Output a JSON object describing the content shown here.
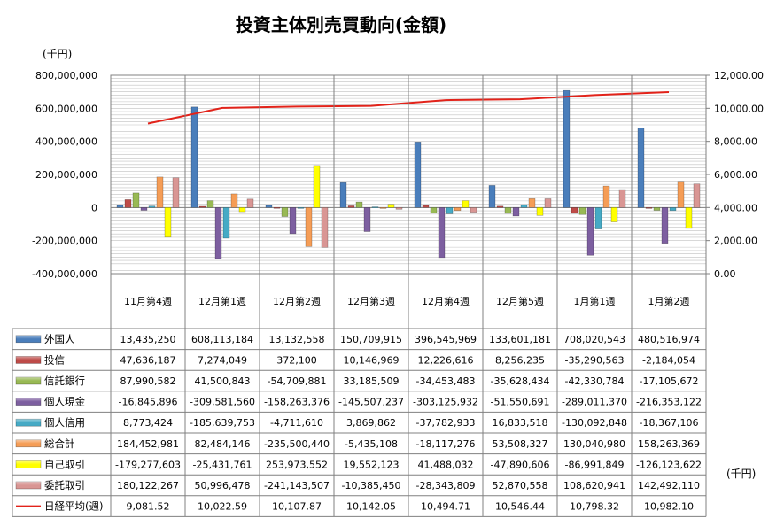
{
  "unit_left": "(千円)",
  "unit_right": "(千円)",
  "chart_data": {
    "type": "bar",
    "title": "投資主体別売買動向(金額)",
    "categories": [
      "11月第4週",
      "12月第1週",
      "12月第2週",
      "12月第3週",
      "12月第4週",
      "12月第5週",
      "1月第1週",
      "1月第2週"
    ],
    "y_left_ticks": [
      "800,000,000",
      "600,000,000",
      "400,000,000",
      "200,000,000",
      "0",
      "-200,000,000",
      "-400,000,000"
    ],
    "y_left_range": [
      -400000000,
      800000000
    ],
    "y_right_ticks": [
      "12,000.00",
      "10,000.00",
      "8,000.00",
      "6,000.00",
      "4,000.00",
      "2,000.00",
      "0.00"
    ],
    "y_right_range": [
      0,
      12000
    ],
    "grid": true,
    "legend_placement": "left-of-table",
    "series": [
      {
        "name": "外国人",
        "type": "bar",
        "color": "#4a7ebb",
        "values": [
          13435250,
          608113184,
          13132558,
          150709915,
          396545969,
          133601181,
          708020543,
          480516974
        ],
        "labels": [
          "13,435,250",
          "608,113,184",
          "13,132,558",
          "150,709,915",
          "396,545,969",
          "133,601,181",
          "708,020,543",
          "480,516,974"
        ]
      },
      {
        "name": "投信",
        "type": "bar",
        "color": "#be4b48",
        "values": [
          47636187,
          7274049,
          372100,
          10146969,
          12226616,
          8256235,
          -35290563,
          -2184054
        ],
        "labels": [
          "47,636,187",
          "7,274,049",
          "372,100",
          "10,146,969",
          "12,226,616",
          "8,256,235",
          "-35,290,563",
          "-2,184,054"
        ]
      },
      {
        "name": "信託銀行",
        "type": "bar",
        "color": "#98b954",
        "values": [
          87990582,
          41500843,
          -54709881,
          33185509,
          -34453483,
          -35628434,
          -42330784,
          -17105672
        ],
        "labels": [
          "87,990,582",
          "41,500,843",
          "-54,709,881",
          "33,185,509",
          "-34,453,483",
          "-35,628,434",
          "-42,330,784",
          "-17,105,672"
        ]
      },
      {
        "name": "個人現金",
        "type": "bar",
        "color": "#7d5fa0",
        "values": [
          -16845896,
          -309581560,
          -158263376,
          -145507237,
          -303125932,
          -51550691,
          -289011370,
          -216353122
        ],
        "labels": [
          "-16,845,896",
          "-309,581,560",
          "-158,263,376",
          "-145,507,237",
          "-303,125,932",
          "-51,550,691",
          "-289,011,370",
          "-216,353,122"
        ]
      },
      {
        "name": "個人信用",
        "type": "bar",
        "color": "#46aac5",
        "values": [
          8773424,
          -185639753,
          -4711610,
          3869862,
          -37782933,
          16833518,
          -130092848,
          -18367106
        ],
        "labels": [
          "8,773,424",
          "-185,639,753",
          "-4,711,610",
          "3,869,862",
          "-37,782,933",
          "16,833,518",
          "-130,092,848",
          "-18,367,106"
        ]
      },
      {
        "name": "総合計",
        "type": "bar",
        "color": "#f59d56",
        "values": [
          184452981,
          82484146,
          -235500440,
          -5435108,
          -18117276,
          53508327,
          130040980,
          158263369
        ],
        "labels": [
          "184,452,981",
          "82,484,146",
          "-235,500,440",
          "-5,435,108",
          "-18,117,276",
          "53,508,327",
          "130,040,980",
          "158,263,369"
        ]
      },
      {
        "name": "自己取引",
        "type": "bar",
        "color": "#ffff00",
        "values": [
          -179277603,
          -25431761,
          253973552,
          19552123,
          41488032,
          -47890606,
          -86991849,
          -126123622
        ],
        "labels": [
          "-179,277,603",
          "-25,431,761",
          "253,973,552",
          "19,552,123",
          "41,488,032",
          "-47,890,606",
          "-86,991,849",
          "-126,123,622"
        ]
      },
      {
        "name": "委託取引",
        "type": "bar",
        "color": "#d99694",
        "values": [
          180122267,
          50996478,
          -241143507,
          -10385450,
          -28343809,
          52870558,
          108620941,
          142492110
        ],
        "labels": [
          "180,122,267",
          "50,996,478",
          "-241,143,507",
          "-10,385,450",
          "-28,343,809",
          "52,870,558",
          "108,620,941",
          "142,492,110"
        ]
      },
      {
        "name": "日経平均(週)",
        "type": "line",
        "axis": "right",
        "color": "#e2231a",
        "values": [
          9081.52,
          10022.59,
          10107.87,
          10142.05,
          10494.71,
          10546.44,
          10798.32,
          10982.1
        ],
        "labels": [
          "9,081.52",
          "10,022.59",
          "10,107.87",
          "10,142.05",
          "10,494.71",
          "10,546.44",
          "10,798.32",
          "10,982.10"
        ]
      }
    ]
  }
}
